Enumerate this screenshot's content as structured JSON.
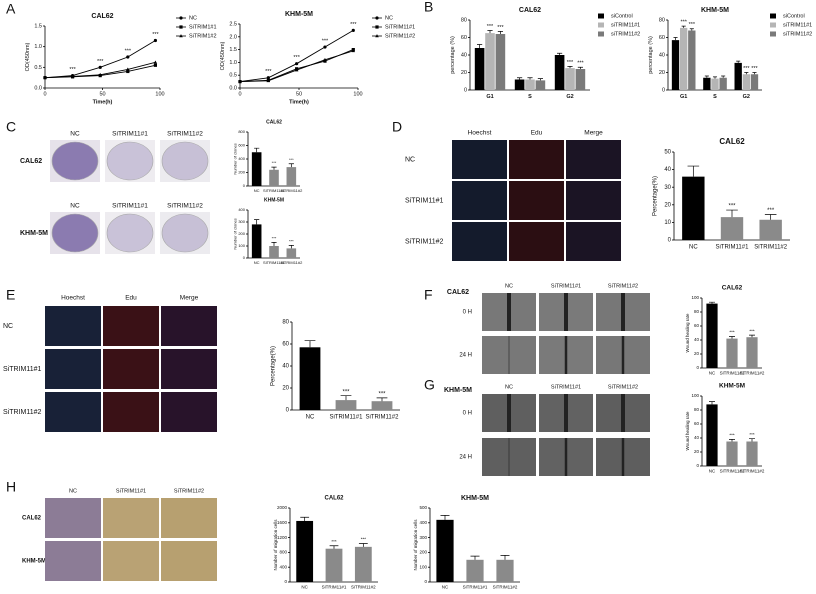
{
  "panels": [
    "A",
    "B",
    "C",
    "D",
    "E",
    "F",
    "G",
    "H"
  ],
  "chart_data": [
    {
      "type": "line",
      "title": "CAL62",
      "xlabel": "Time(h)",
      "ylabel": "OD(450nm)",
      "x": [
        0,
        24,
        48,
        72,
        96
      ],
      "xlim": [
        0,
        100
      ],
      "xticks": [
        0,
        50,
        100
      ],
      "ylim": [
        0,
        1.5
      ],
      "yticks": [
        {
          "value": 0,
          "label": "0.0"
        },
        {
          "value": 0.5,
          "label": "0.5"
        },
        {
          "value": 1,
          "label": "1.0"
        },
        {
          "value": 1.5,
          "label": "1.5"
        }
      ],
      "series": [
        {
          "name": "NC",
          "color": "#000000",
          "marker": "circle",
          "values": [
            0.25,
            0.3,
            0.5,
            0.75,
            1.15
          ],
          "significance": [
            null,
            "***",
            "***",
            "***",
            "***"
          ]
        },
        {
          "name": "SiTRIM1#1",
          "color": "#000000",
          "marker": "square",
          "values": [
            0.25,
            0.27,
            0.3,
            0.4,
            0.55
          ]
        },
        {
          "name": "SiTRIM1#2",
          "color": "#000000",
          "marker": "triangle",
          "values": [
            0.25,
            0.28,
            0.32,
            0.45,
            0.62
          ]
        }
      ]
    },
    {
      "type": "line",
      "title": "KHM-5M",
      "xlabel": "Time(h)",
      "ylabel": "OD(450nm)",
      "x": [
        0,
        24,
        48,
        72,
        96
      ],
      "xlim": [
        0,
        100
      ],
      "xticks": [
        0,
        50,
        100
      ],
      "ylim": [
        0,
        2.5
      ],
      "yticks": [
        {
          "value": 0,
          "label": "0.0"
        },
        {
          "value": 0.5,
          "label": "0.5"
        },
        {
          "value": 1,
          "label": "1.0"
        },
        {
          "value": 1.5,
          "label": "1.5"
        },
        {
          "value": 2,
          "label": "2.0"
        },
        {
          "value": 2.5,
          "label": "2.5"
        }
      ],
      "series": [
        {
          "name": "NC",
          "color": "#000000",
          "marker": "circle",
          "values": [
            0.25,
            0.4,
            0.95,
            1.6,
            2.25
          ],
          "significance": [
            null,
            "***",
            "***",
            "***",
            "***"
          ]
        },
        {
          "name": "SiTRIM11#1",
          "color": "#000000",
          "marker": "square",
          "values": [
            0.25,
            0.3,
            0.75,
            1.05,
            1.5
          ]
        },
        {
          "name": "SiTRIM11#2",
          "color": "#000000",
          "marker": "triangle",
          "values": [
            0.25,
            0.28,
            0.7,
            1.1,
            1.45
          ]
        }
      ]
    },
    {
      "type": "bar",
      "title": "CAL62",
      "ylabel": "percentage (%)",
      "categories": [
        "G1",
        "S",
        "G2"
      ],
      "ylim": [
        0,
        80
      ],
      "yticks": [
        0,
        20,
        40,
        60,
        80
      ],
      "series": [
        {
          "name": "siControl",
          "color": "#000000",
          "values": [
            48,
            12,
            40
          ],
          "errors": [
            4,
            2,
            2
          ],
          "significance": [
            null,
            null,
            null
          ]
        },
        {
          "name": "siTRIM11#1",
          "color": "#b5b5b5",
          "values": [
            65,
            12,
            25
          ],
          "errors": [
            3,
            2,
            2
          ],
          "significance": [
            "***",
            null,
            "***"
          ]
        },
        {
          "name": "siTRIM11#2",
          "color": "#7a7a7a",
          "values": [
            64,
            11,
            24
          ],
          "errors": [
            3,
            2,
            2
          ],
          "significance": [
            "***",
            null,
            "***"
          ]
        }
      ]
    },
    {
      "type": "bar",
      "title": "KHM-5M",
      "ylabel": "percentage (%)",
      "categories": [
        "G1",
        "S",
        "G2"
      ],
      "ylim": [
        0,
        80
      ],
      "yticks": [
        0,
        20,
        40,
        60,
        80
      ],
      "series": [
        {
          "name": "siControl",
          "color": "#000000",
          "values": [
            57,
            14,
            31
          ],
          "errors": [
            3,
            2,
            2
          ],
          "significance": [
            null,
            null,
            null
          ]
        },
        {
          "name": "siTRIM11#1",
          "color": "#b5b5b5",
          "values": [
            71,
            13,
            18
          ],
          "errors": [
            2,
            2,
            2
          ],
          "significance": [
            "***",
            null,
            "***"
          ]
        },
        {
          "name": "siTRIM11#2",
          "color": "#7a7a7a",
          "values": [
            68,
            14,
            18
          ],
          "errors": [
            2,
            2,
            2
          ],
          "significance": [
            "***",
            null,
            "***"
          ]
        }
      ]
    },
    {
      "type": "bar",
      "title": "CAL62",
      "ylabel": "Number of clones",
      "categories": [
        "NC",
        "SiTRIM11#1",
        "SiTRIM11#2"
      ],
      "values": [
        500,
        240,
        280
      ],
      "errors": [
        60,
        40,
        50
      ],
      "significance": [
        null,
        "***",
        "***"
      ],
      "colors": [
        "#000000",
        "#8a8a8a",
        "#8a8a8a"
      ],
      "ylim": [
        0,
        800
      ],
      "yticks": [
        0,
        200,
        400,
        600,
        800
      ]
    },
    {
      "type": "bar",
      "title": "KHM-5M",
      "ylabel": "Number of clones",
      "categories": [
        "NC",
        "SiTRIM11#1",
        "SiTRIM11#2"
      ],
      "values": [
        280,
        100,
        80
      ],
      "errors": [
        40,
        30,
        25
      ],
      "significance": [
        null,
        "***",
        "***"
      ],
      "colors": [
        "#000000",
        "#8a8a8a",
        "#8a8a8a"
      ],
      "ylim": [
        0,
        400
      ],
      "yticks": [
        0,
        100,
        200,
        300,
        400
      ]
    },
    {
      "type": "bar",
      "title": "CAL62",
      "ylabel": "Percentage(%)",
      "categories": [
        "NC",
        "SiTRIM11#1",
        "SiTRIM11#2"
      ],
      "values": [
        36,
        13,
        11.5
      ],
      "errors": [
        6,
        4,
        3
      ],
      "significance": [
        null,
        "***",
        "***"
      ],
      "colors": [
        "#000000",
        "#8a8a8a",
        "#8a8a8a"
      ],
      "ylim": [
        0,
        50
      ],
      "yticks": [
        0,
        10,
        20,
        30,
        40,
        50
      ]
    },
    {
      "type": "bar",
      "ylabel": "Percentage(%)",
      "categories": [
        "NC",
        "SiTRIM11#1",
        "SiTRIM11#2"
      ],
      "values": [
        57,
        9,
        8
      ],
      "errors": [
        6,
        4,
        3
      ],
      "significance": [
        null,
        "***",
        "***"
      ],
      "colors": [
        "#000000",
        "#8a8a8a",
        "#8a8a8a"
      ],
      "ylim": [
        0,
        80
      ],
      "yticks": [
        0,
        20,
        40,
        60,
        80
      ]
    },
    {
      "type": "bar",
      "title": "CAL62",
      "ylabel": "Wound healing rate",
      "categories": [
        "NC",
        "SiTRIM11#1",
        "SiTRIM11#2"
      ],
      "values": [
        92,
        42,
        44
      ],
      "errors": [
        2,
        3,
        3
      ],
      "significance": [
        null,
        "***",
        "***"
      ],
      "colors": [
        "#000000",
        "#8a8a8a",
        "#8a8a8a"
      ],
      "ylim": [
        0,
        100
      ],
      "yticks": [
        0,
        20,
        40,
        60,
        80,
        100
      ]
    },
    {
      "type": "bar",
      "title": "KHM-5M",
      "ylabel": "Wound healing rate",
      "categories": [
        "NC",
        "SiTRIM11#1",
        "SiTRIM11#2"
      ],
      "values": [
        88,
        35,
        35
      ],
      "errors": [
        4,
        3,
        4
      ],
      "significance": [
        null,
        "***",
        "***"
      ],
      "colors": [
        "#000000",
        "#8a8a8a",
        "#8a8a8a"
      ],
      "ylim": [
        0,
        100
      ],
      "yticks": [
        0,
        20,
        40,
        60,
        80,
        100
      ]
    },
    {
      "type": "bar",
      "title": "CAL62",
      "ylabel": "Number of migration cells",
      "categories": [
        "NC",
        "SiTRIM11#1",
        "SiTRIM11#2"
      ],
      "values": [
        1650,
        900,
        950
      ],
      "errors": [
        100,
        80,
        90
      ],
      "significance": [
        null,
        "***",
        "***"
      ],
      "colors": [
        "#000000",
        "#8a8a8a",
        "#8a8a8a"
      ],
      "ylim": [
        0,
        2000
      ],
      "yticks": [
        0,
        400,
        800,
        1200,
        1600,
        2000
      ]
    },
    {
      "type": "bar",
      "title": "KHM-5M",
      "ylabel": "Number of migration cells",
      "categories": [
        "NC",
        "SiTRIM11#1",
        "SiTRIM11#2"
      ],
      "values": [
        420,
        150,
        150
      ],
      "errors": [
        30,
        25,
        30
      ],
      "colors": [
        "#000000",
        "#8a8a8a",
        "#8a8a8a"
      ],
      "ylim": [
        0,
        500
      ],
      "yticks": [
        0,
        100,
        200,
        300,
        400,
        500
      ]
    }
  ],
  "image_panels": [
    {
      "rows": [
        "CAL62",
        "KHM-5M"
      ],
      "columns": [
        "NC",
        "SiTRIM11#1",
        "SiTRIM11#2"
      ]
    },
    {
      "rows": [
        "NC",
        "SiTRIM11#1",
        "SiTRIM11#2"
      ],
      "columns": [
        "Hoechst",
        "Edu",
        "Merge"
      ]
    },
    {
      "rows": [
        "NC",
        "SiTRIM11#1",
        "SiTRIM11#2"
      ],
      "columns": [
        "Hoechst",
        "Edu",
        "Merge"
      ]
    },
    {
      "title": "CAL62",
      "rows": [
        "0 H",
        "24 H"
      ],
      "columns": [
        "NC",
        "SiTRIM11#1",
        "SiTRIM11#2"
      ]
    },
    {
      "title": "KHM-5M",
      "rows": [
        "0 H",
        "24 H"
      ],
      "columns": [
        "NC",
        "SiTRIM11#1",
        "SiTRIM11#2"
      ]
    },
    {
      "rows": [
        "CAL62",
        "KHM-5M"
      ],
      "columns": [
        "NC",
        "SiTRIM11#1",
        "SiTRIM11#2"
      ]
    }
  ]
}
